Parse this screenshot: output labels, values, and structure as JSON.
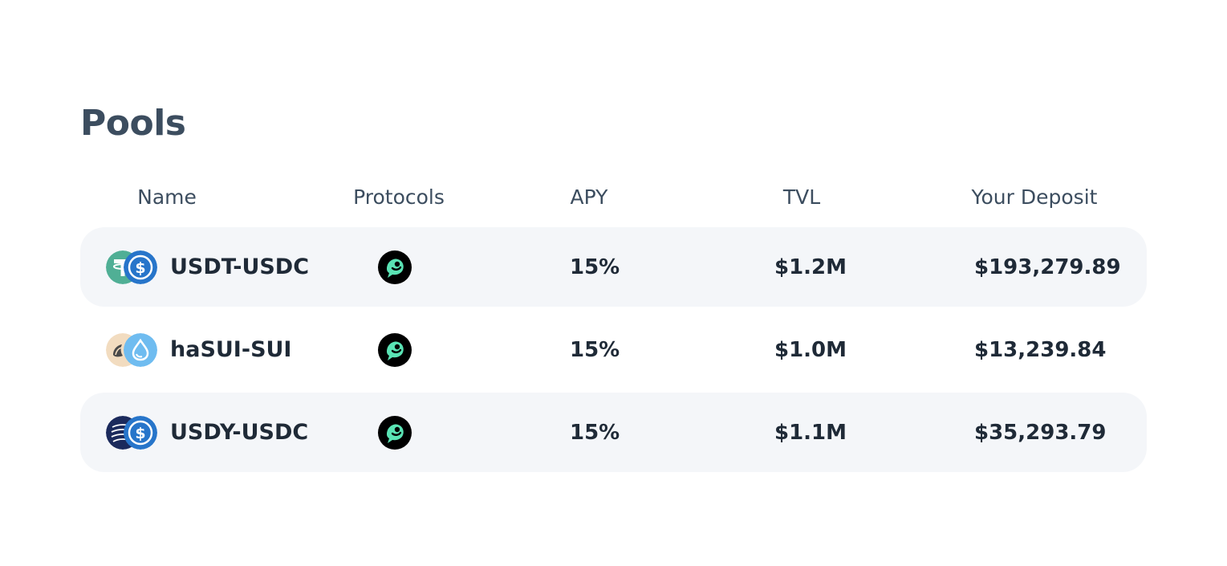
{
  "page": {
    "title": "Pools"
  },
  "table": {
    "columns": {
      "name": "Name",
      "protocols": "Protocols",
      "apy": "APY",
      "tvl": "TVL",
      "deposit": "Your Deposit"
    },
    "rows": [
      {
        "name": "USDT-USDC",
        "token_a_icon": "usdt-icon",
        "token_b_icon": "usdc-icon",
        "protocol_icon": "bird-protocol-icon",
        "apy": "15%",
        "tvl": "$1.2M",
        "deposit": "$193,279.89"
      },
      {
        "name": "haSUI-SUI",
        "token_a_icon": "hasui-icon",
        "token_b_icon": "sui-icon",
        "protocol_icon": "bird-protocol-icon",
        "apy": "15%",
        "tvl": "$1.0M",
        "deposit": "$13,239.84"
      },
      {
        "name": "USDY-USDC",
        "token_a_icon": "usdy-icon",
        "token_b_icon": "usdc-icon",
        "protocol_icon": "bird-protocol-icon",
        "apy": "15%",
        "tvl": "$1.1M",
        "deposit": "$35,293.79"
      }
    ]
  },
  "colors": {
    "title": "#3c4d5f",
    "header_text": "#3c4d5f",
    "row_text": "#1f2a37",
    "row_shade": "#f4f6f9",
    "usdt_green": "#50af95",
    "usdc_blue": "#2775ca",
    "sui_blue": "#6fbcf0",
    "hasui_beige": "#f2dcc0",
    "usdy_navy": "#1b2a5c",
    "protocol_mint": "#5ae3b4"
  }
}
